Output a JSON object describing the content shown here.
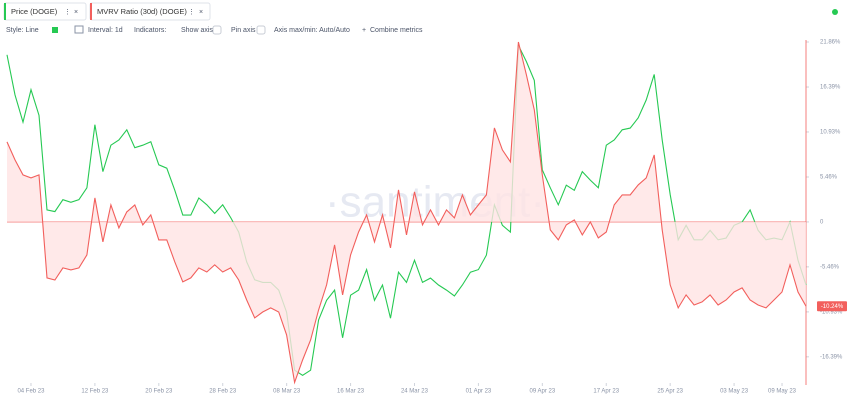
{
  "toolbar": {
    "style": "Style: Line",
    "interval": "Interval: 1d",
    "indicators": "Indicators:",
    "show_axis": "Show axis",
    "pin_axis": "Pin axis",
    "axis_minmax": "Axis max/min: Auto/Auto",
    "combine": "Combine metrics"
  },
  "watermark": "·santiment·",
  "chart_data": {
    "type": "line",
    "x": [
      "2023-02-01",
      "2023-02-02",
      "2023-02-03",
      "2023-02-04",
      "2023-02-05",
      "2023-02-06",
      "2023-02-07",
      "2023-02-08",
      "2023-02-09",
      "2023-02-10",
      "2023-02-11",
      "2023-02-12",
      "2023-02-13",
      "2023-02-14",
      "2023-02-15",
      "2023-02-16",
      "2023-02-17",
      "2023-02-18",
      "2023-02-19",
      "2023-02-20",
      "2023-02-21",
      "2023-02-22",
      "2023-02-23",
      "2023-02-24",
      "2023-02-25",
      "2023-02-26",
      "2023-02-27",
      "2023-02-28",
      "2023-03-01",
      "2023-03-02",
      "2023-03-03",
      "2023-03-04",
      "2023-03-05",
      "2023-03-06",
      "2023-03-07",
      "2023-03-08",
      "2023-03-09",
      "2023-03-10",
      "2023-03-11",
      "2023-03-12",
      "2023-03-13",
      "2023-03-14",
      "2023-03-15",
      "2023-03-16",
      "2023-03-17",
      "2023-03-18",
      "2023-03-19",
      "2023-03-20",
      "2023-03-21",
      "2023-03-22",
      "2023-03-23",
      "2023-03-24",
      "2023-03-25",
      "2023-03-26",
      "2023-03-27",
      "2023-03-28",
      "2023-03-29",
      "2023-03-30",
      "2023-03-31",
      "2023-04-01",
      "2023-04-02",
      "2023-04-03",
      "2023-04-04",
      "2023-04-05",
      "2023-04-06",
      "2023-04-07",
      "2023-04-08",
      "2023-04-09",
      "2023-04-10",
      "2023-04-11",
      "2023-04-12",
      "2023-04-13",
      "2023-04-14",
      "2023-04-15",
      "2023-04-16",
      "2023-04-17",
      "2023-04-18",
      "2023-04-19",
      "2023-04-20",
      "2023-04-21",
      "2023-04-22",
      "2023-04-23",
      "2023-04-24",
      "2023-04-25",
      "2023-04-26",
      "2023-04-27",
      "2023-04-28",
      "2023-04-29",
      "2023-04-30",
      "2023-05-01",
      "2023-05-02",
      "2023-05-03",
      "2023-05-04",
      "2023-05-05",
      "2023-05-06",
      "2023-05-07",
      "2023-05-08",
      "2023-05-09",
      "2023-05-10",
      "2023-05-11",
      "2023-05-12"
    ],
    "xlim": [
      "2023-02-01",
      "2023-05-12"
    ],
    "xticks": [
      {
        "value": "2023-02-04",
        "label": "04 Feb 23"
      },
      {
        "value": "2023-02-12",
        "label": "12 Feb 23"
      },
      {
        "value": "2023-02-20",
        "label": "20 Feb 23"
      },
      {
        "value": "2023-02-28",
        "label": "28 Feb 23"
      },
      {
        "value": "2023-03-08",
        "label": "08 Mar 23"
      },
      {
        "value": "2023-03-16",
        "label": "16 Mar 23"
      },
      {
        "value": "2023-03-24",
        "label": "24 Mar 23"
      },
      {
        "value": "2023-04-01",
        "label": "01 Apr 23"
      },
      {
        "value": "2023-04-09",
        "label": "09 Apr 23"
      },
      {
        "value": "2023-04-17",
        "label": "17 Apr 23"
      },
      {
        "value": "2023-04-25",
        "label": "25 Apr 23"
      },
      {
        "value": "2023-05-03",
        "label": "03 May 23"
      },
      {
        "value": "2023-05-09",
        "label": "09 May 23"
      }
    ],
    "ylim": [
      -19.57,
      21.86
    ],
    "yticks": [
      {
        "value": 21.86,
        "label": "21.86%"
      },
      {
        "value": 16.39,
        "label": "16.39%"
      },
      {
        "value": 10.93,
        "label": "10.93%"
      },
      {
        "value": 5.46,
        "label": "5.46%"
      },
      0,
      {
        "value": -5.46,
        "label": "-5.46%"
      },
      {
        "value": -10.93,
        "label": "-10.93%"
      },
      {
        "value": -16.39,
        "label": "-16.39%"
      }
    ],
    "y2lim": [
      0.06,
      0.1
    ],
    "series": [
      {
        "name": "Price (DOGE)",
        "color": "#26c953",
        "axis": "y2",
        "values": [
          0.0985,
          0.0938,
          0.0906,
          0.0944,
          0.0914,
          0.0803,
          0.0801,
          0.0815,
          0.0812,
          0.0815,
          0.0829,
          0.0903,
          0.0848,
          0.0879,
          0.0885,
          0.0897,
          0.0876,
          0.0879,
          0.0883,
          0.0856,
          0.0852,
          0.0826,
          0.0797,
          0.0797,
          0.0817,
          0.0809,
          0.0799,
          0.0809,
          0.0794,
          0.0777,
          0.0742,
          0.0721,
          0.0718,
          0.0718,
          0.0709,
          0.0683,
          0.0615,
          0.0609,
          0.0615,
          0.0674,
          0.0697,
          0.0709,
          0.0653,
          0.0703,
          0.0709,
          0.0733,
          0.0697,
          0.0715,
          0.0676,
          0.073,
          0.0718,
          0.0744,
          0.0718,
          0.0723,
          0.0715,
          0.0709,
          0.0702,
          0.0715,
          0.073,
          0.0733,
          0.075,
          0.0809,
          0.0785,
          0.0777,
          0.0996,
          0.0977,
          0.0955,
          0.085,
          0.0829,
          0.0809,
          0.0832,
          0.0826,
          0.0848,
          0.0838,
          0.0829,
          0.0879,
          0.0885,
          0.0897,
          0.0899,
          0.0911,
          0.0932,
          0.0962,
          0.0885,
          0.0821,
          0.0768,
          0.0785,
          0.0768,
          0.0768,
          0.0779,
          0.0768,
          0.077,
          0.0785,
          0.0789,
          0.0803,
          0.0779,
          0.0768,
          0.077,
          0.0768,
          0.0789,
          0.0744,
          0.0715
        ]
      },
      {
        "name": "MVRV Ratio (30d) (DOGE)",
        "color": "#f25f5c",
        "fill": "#ffe3e3",
        "values": [
          9.72,
          7.53,
          5.71,
          5.35,
          5.71,
          -6.8,
          -7.05,
          -5.59,
          -5.83,
          -5.59,
          -4.01,
          2.92,
          -2.43,
          2.07,
          -0.73,
          1.22,
          2.07,
          -0.36,
          0.85,
          -2.19,
          -2.19,
          -4.86,
          -7.29,
          -6.8,
          -5.59,
          -6.08,
          -5.22,
          -6.08,
          -5.59,
          -7.05,
          -9.48,
          -11.66,
          -10.94,
          -10.45,
          -10.94,
          -13.73,
          -19.5,
          -16.77,
          -14.34,
          -10.69,
          -7.65,
          -2.79,
          -8.87,
          -4.01,
          -1.22,
          0.85,
          -2.43,
          0.85,
          -3.16,
          3.89,
          -1.58,
          3.65,
          -0.36,
          1.46,
          -0.36,
          1.46,
          0.49,
          3.28,
          0.85,
          2.07,
          3.28,
          11.42,
          8.75,
          7.29,
          21.86,
          17.86,
          13.61,
          5.71,
          -0.97,
          -2.19,
          -0.36,
          0.24,
          -1.58,
          0,
          -1.94,
          -1.22,
          2.07,
          3.28,
          3.28,
          4.5,
          5.35,
          8.14,
          -0.97,
          -7.65,
          -10.45,
          -8.87,
          -10.09,
          -9.72,
          -8.87,
          -10.09,
          -9.48,
          -8.51,
          -8.02,
          -9.48,
          -10.09,
          -10.45,
          -9.48,
          -8.51,
          -5.22,
          -8.51,
          -10.24
        ],
        "last_label": "-10.24%"
      }
    ]
  }
}
